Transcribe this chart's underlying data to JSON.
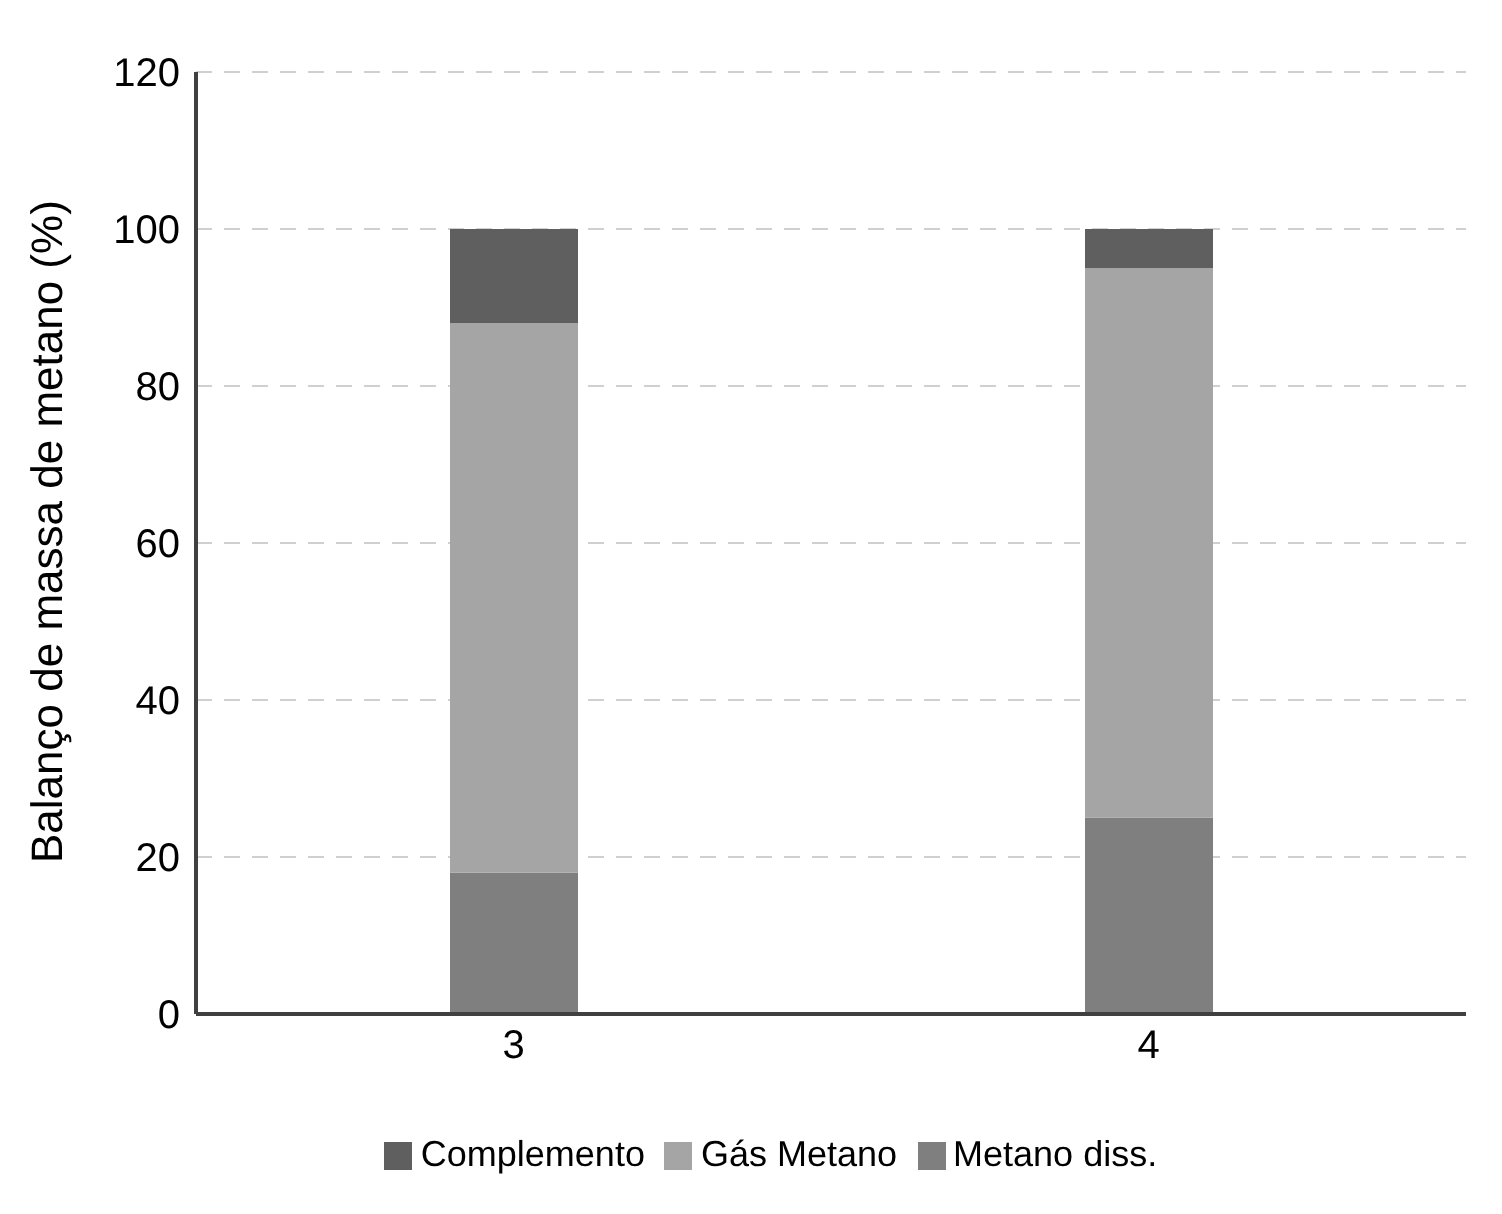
{
  "chart_data": {
    "type": "bar",
    "stacked": true,
    "categories": [
      "3",
      "4"
    ],
    "series": [
      {
        "name": "Metano diss.",
        "color": "#7f7f7f",
        "values": [
          18,
          25
        ]
      },
      {
        "name": "Gás Metano",
        "color": "#a5a5a5",
        "values": [
          70,
          70
        ]
      },
      {
        "name": "Complemento",
        "color": "#5f5f5f",
        "values": [
          12,
          5
        ]
      }
    ],
    "ylabel": "Balanço de massa de metano (%)",
    "ylim": [
      0,
      120
    ],
    "yticks": [
      0,
      20,
      40,
      60,
      80,
      100,
      120
    ],
    "grid": "y",
    "legend": "bottom"
  }
}
